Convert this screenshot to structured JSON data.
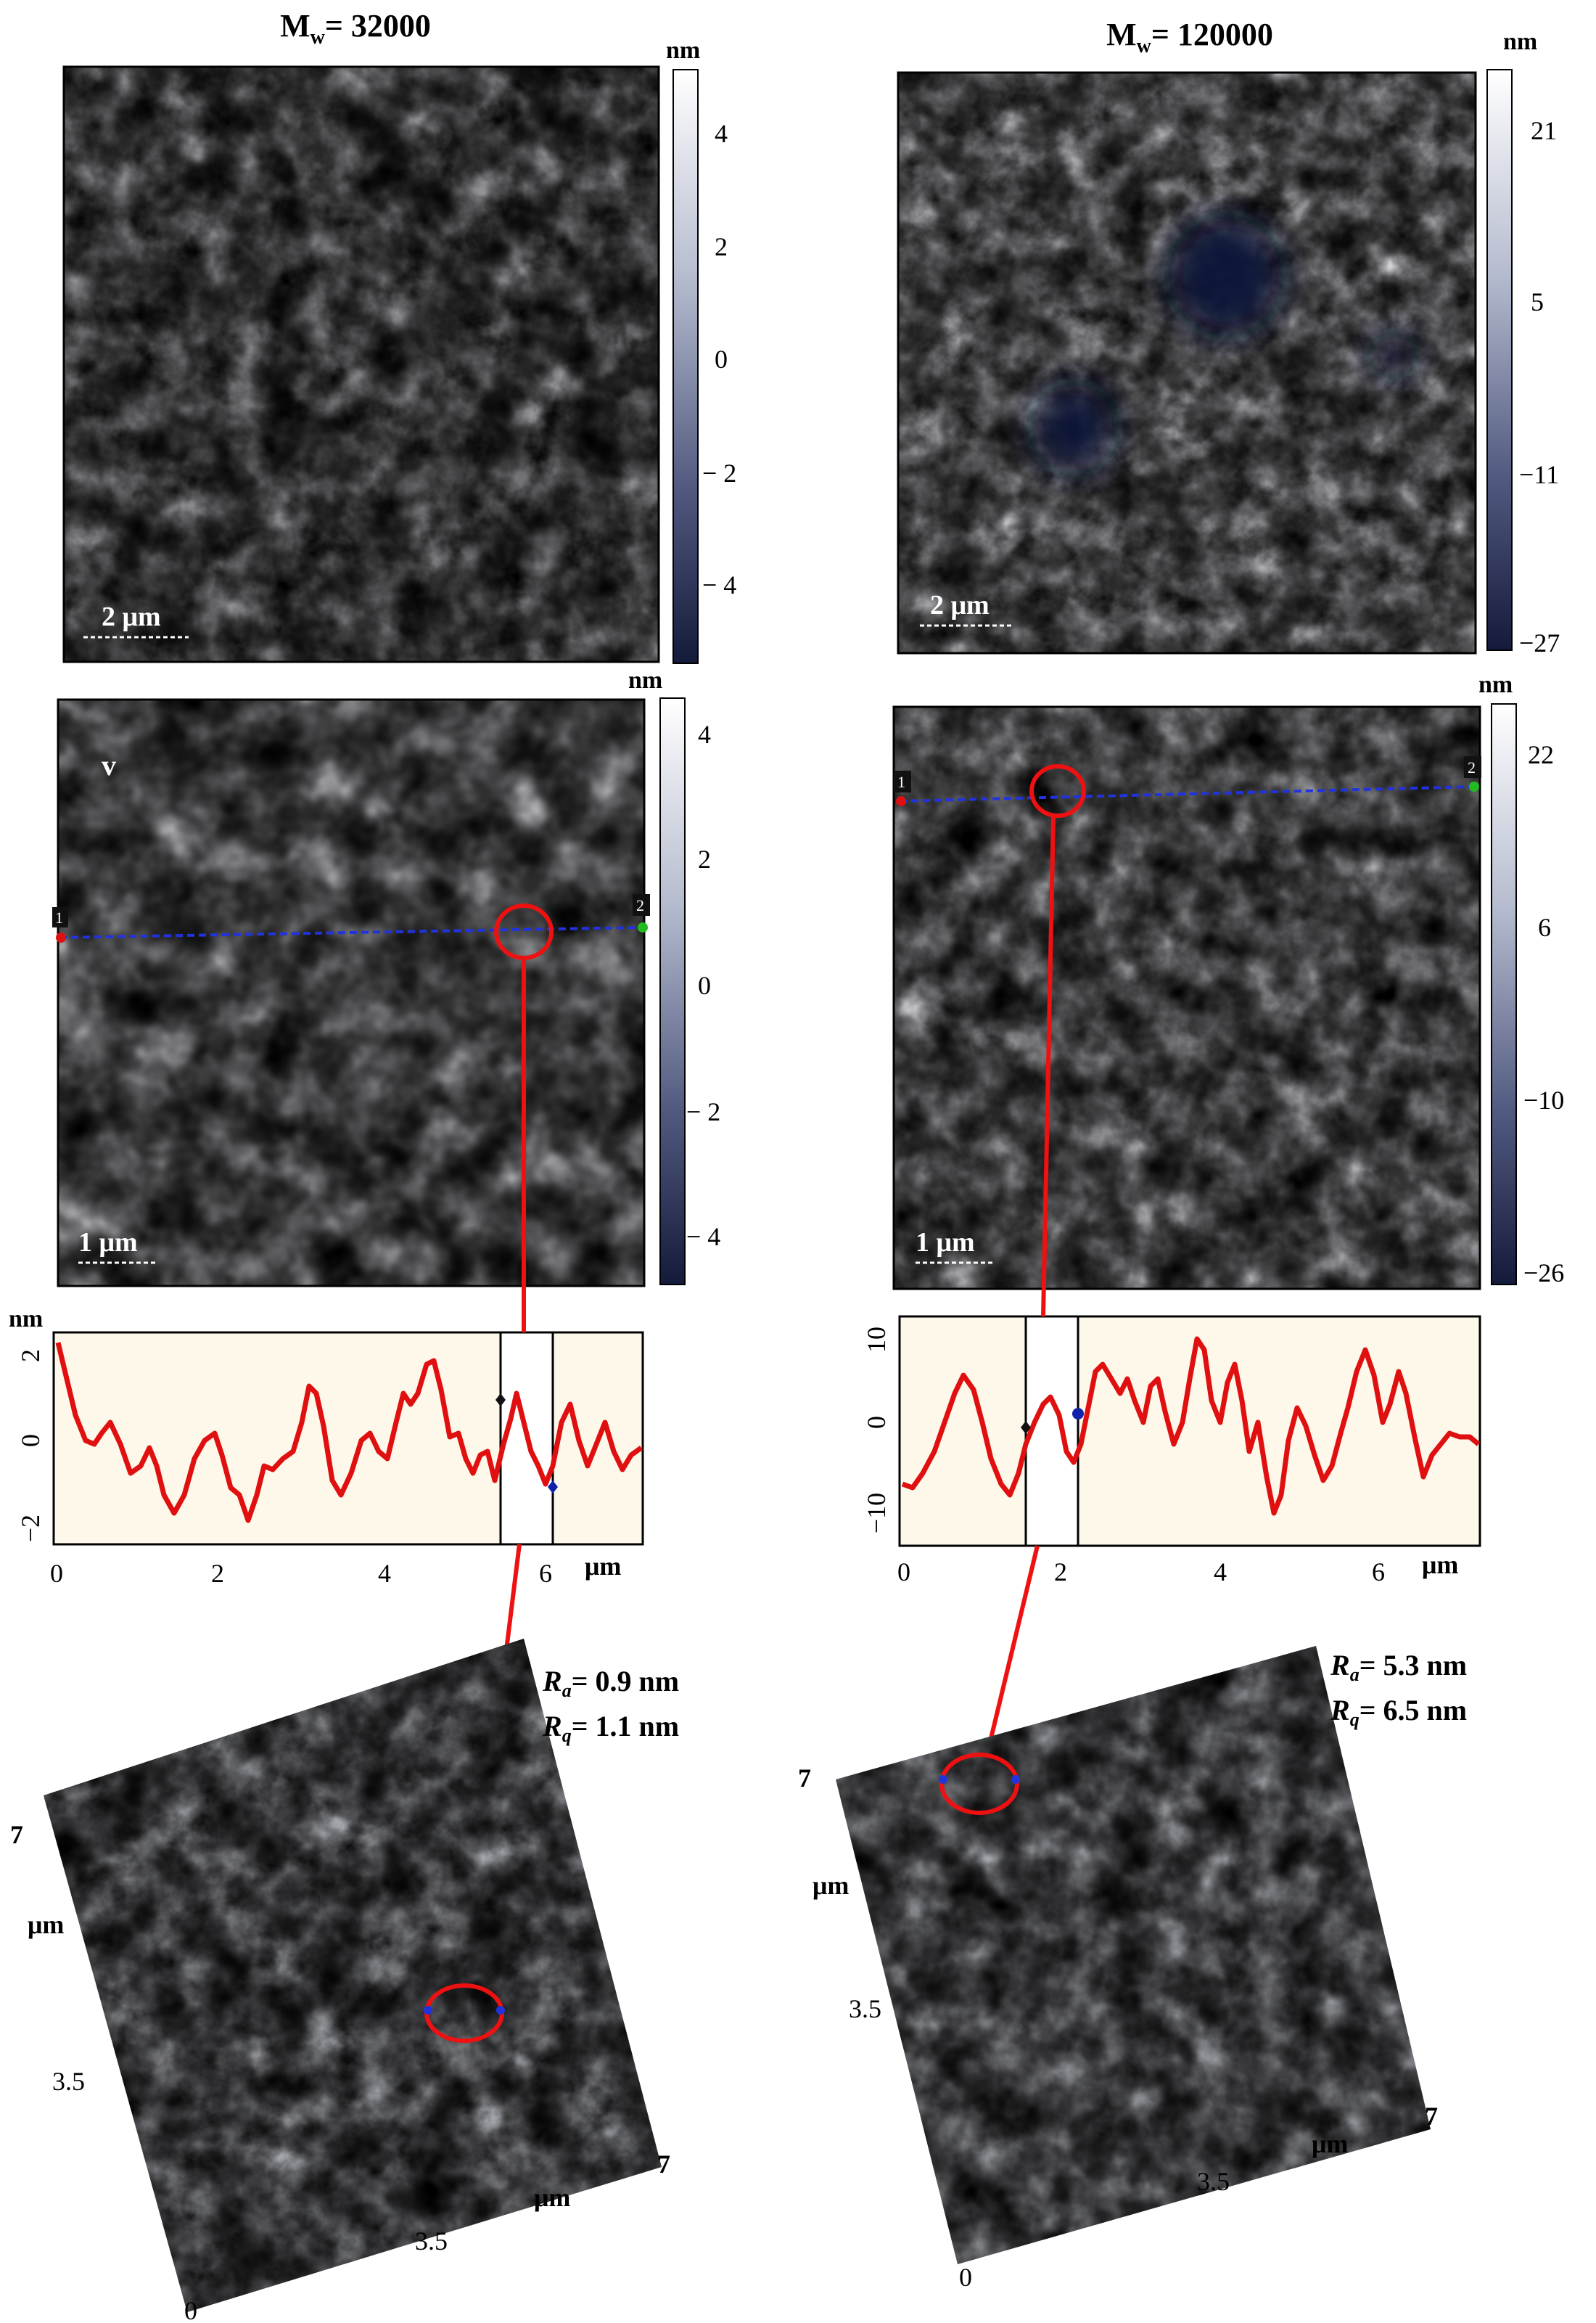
{
  "colors": {
    "afm_dark": "#20264a",
    "afm_mid": "#7c87a8",
    "afm_light": "#f2f3f8",
    "profile_line": "#e01010",
    "profile_bg": "#fdf8ea",
    "scan_line": "#2233dd",
    "marker_red": "#dd1111",
    "marker_green": "#22bb22"
  },
  "columns": [
    {
      "title_main": "M",
      "title_sub": "w",
      "title_value": "= 32000",
      "top_map": {
        "scale_bar": "2 μm",
        "colorbar_unit": "nm",
        "colorbar_ticks": [
          "4",
          "2",
          "0",
          "− 2",
          "− 4"
        ]
      },
      "mid_map": {
        "corner_label": "v",
        "scale_bar": "1 μm",
        "colorbar_unit": "nm",
        "colorbar_ticks": [
          "4",
          "2",
          "0",
          "− 2",
          "− 4"
        ],
        "marker_start": "1",
        "marker_end": "2"
      },
      "profile": {
        "y_unit": "nm",
        "y_ticks": [
          "2",
          "0",
          "−2"
        ],
        "x_ticks": [
          "0",
          "2",
          "4",
          "6"
        ],
        "x_unit": "μm"
      },
      "roughness": {
        "ra_symbol": "R",
        "ra_sub": "a",
        "ra_value": "= 0.9 nm",
        "rq_symbol": "R",
        "rq_sub": "q",
        "rq_value": "= 1.1 nm"
      },
      "surface3d": {
        "y_ticks": [
          "7",
          "3.5"
        ],
        "y_unit": "μm",
        "x_ticks": [
          "3.5",
          "7"
        ],
        "x_unit": "μm",
        "origin": "0"
      }
    },
    {
      "title_main": "M",
      "title_sub": "w",
      "title_value": "= 120000",
      "top_map": {
        "scale_bar": "2 μm",
        "colorbar_unit": "nm",
        "colorbar_ticks": [
          "21",
          "5",
          "−11",
          "−27"
        ]
      },
      "mid_map": {
        "scale_bar": "1 μm",
        "colorbar_unit": "nm",
        "colorbar_ticks": [
          "22",
          "6",
          "−10",
          "−26"
        ],
        "marker_start": "1",
        "marker_end": "2"
      },
      "profile": {
        "y_ticks": [
          "10",
          "0",
          "−10"
        ],
        "x_ticks": [
          "0",
          "2",
          "4",
          "6"
        ],
        "x_unit": "μm"
      },
      "roughness": {
        "ra_symbol": "R",
        "ra_sub": "a",
        "ra_value": "= 5.3 nm",
        "rq_symbol": "R",
        "rq_sub": "q",
        "rq_value": "= 6.5 nm"
      },
      "surface3d": {
        "y_ticks": [
          "7",
          "3.5"
        ],
        "y_unit": "μm",
        "x_ticks": [
          "3.5",
          "7"
        ],
        "x_unit": "μm",
        "origin": "0"
      }
    }
  ]
}
